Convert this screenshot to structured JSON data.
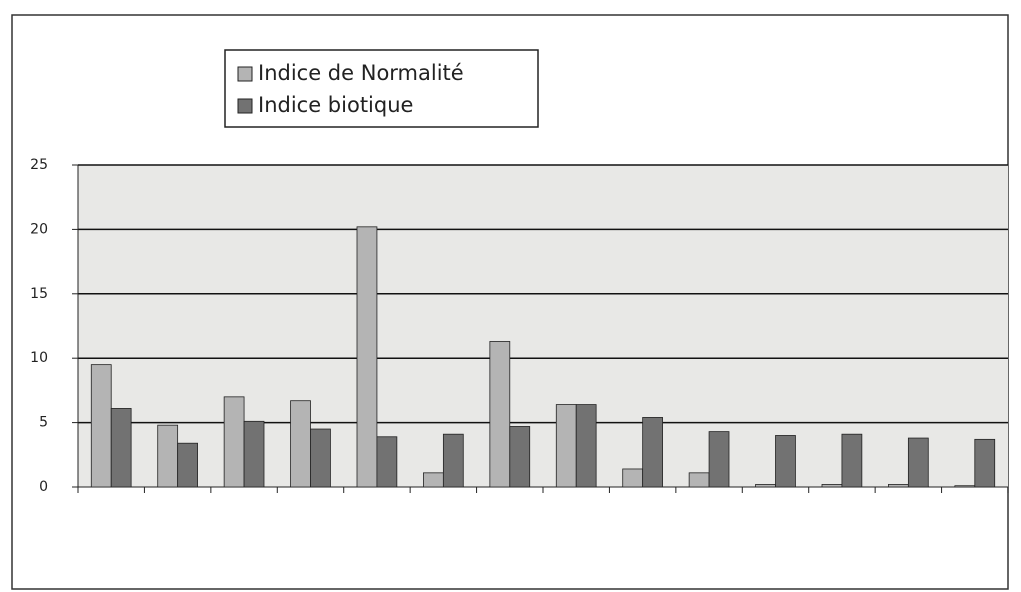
{
  "chart_data": {
    "type": "bar",
    "categories": [
      null,
      null,
      null,
      null,
      null,
      null,
      null,
      null,
      null,
      null,
      null,
      null,
      null,
      null
    ],
    "series": [
      {
        "name": "Indice de Normalité",
        "color": "#b4b4b4",
        "values": [
          9.5,
          4.8,
          7.0,
          6.7,
          20.2,
          1.1,
          11.3,
          6.4,
          1.4,
          1.1,
          0.2,
          0.2,
          0.2,
          0.1
        ]
      },
      {
        "name": "Indice biotique",
        "color": "#727272",
        "values": [
          6.1,
          3.4,
          5.1,
          4.5,
          3.9,
          4.1,
          4.7,
          6.4,
          5.4,
          4.3,
          4.0,
          4.1,
          3.8,
          3.7
        ]
      }
    ],
    "ylim": [
      0,
      25
    ],
    "yticks": [
      0,
      5,
      10,
      15,
      20,
      25
    ],
    "grid": true,
    "legend": "top-left"
  }
}
